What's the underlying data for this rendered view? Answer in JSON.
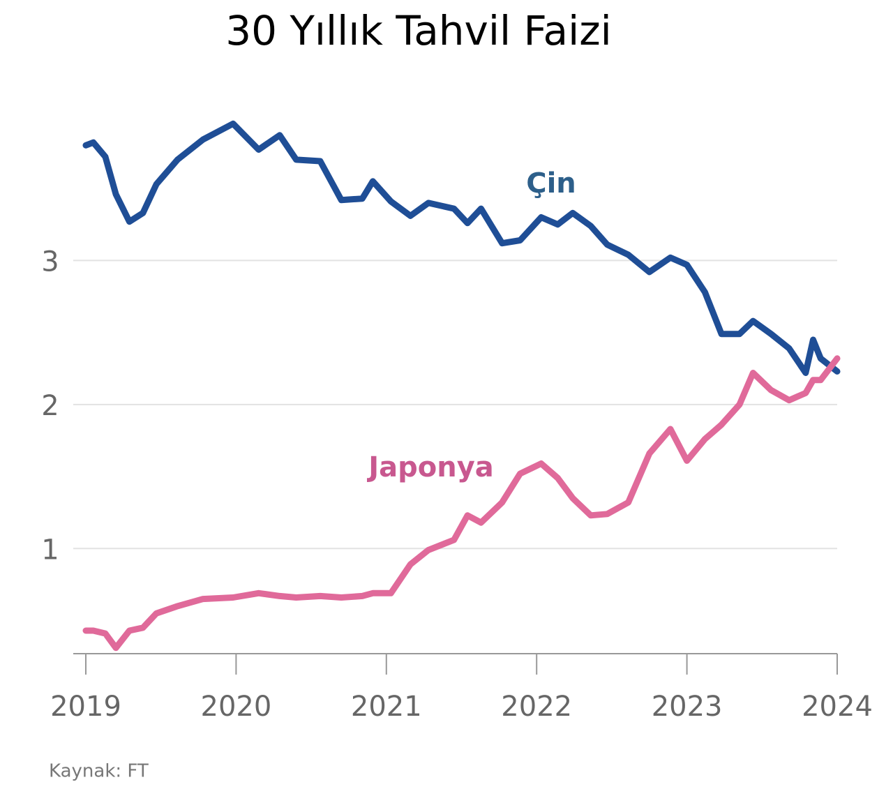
{
  "chart_data": {
    "type": "line",
    "title": "30 Yıllık Tahvil Faizi",
    "source": "Kaynak: FT",
    "x": [
      2019.0,
      2019.05,
      2019.13,
      2019.2,
      2019.29,
      2019.38,
      2019.47,
      2019.61,
      2019.78,
      2019.98,
      2020.15,
      2020.29,
      2020.4,
      2020.56,
      2020.7,
      2020.84,
      2020.91,
      2021.03,
      2021.16,
      2021.28,
      2021.45,
      2021.54,
      2021.63,
      2021.77,
      2021.89,
      2022.03,
      2022.14,
      2022.24,
      2022.36,
      2022.47,
      2022.61,
      2022.75,
      2022.89,
      2023.0,
      2023.12,
      2023.23,
      2023.35,
      2023.44,
      2023.56,
      2023.68,
      2023.79,
      2023.84,
      2023.89,
      2024.0
    ],
    "series": [
      {
        "name": "Çin",
        "color": "#1f4e96",
        "label_color": "#2d5f8a",
        "values": [
          3.8,
          3.82,
          3.72,
          3.46,
          3.27,
          3.33,
          3.53,
          3.7,
          3.84,
          3.95,
          3.77,
          3.87,
          3.7,
          3.69,
          3.42,
          3.43,
          3.55,
          3.41,
          3.31,
          3.4,
          3.36,
          3.26,
          3.36,
          3.12,
          3.14,
          3.3,
          3.25,
          3.33,
          3.24,
          3.11,
          3.04,
          2.92,
          3.02,
          2.97,
          2.78,
          2.49,
          2.49,
          2.58,
          2.49,
          2.39,
          2.22,
          2.45,
          2.32,
          2.23
        ]
      },
      {
        "name": "Japonya",
        "color": "#e06a9a",
        "label_color": "#c8588f",
        "values": [
          0.43,
          0.43,
          0.41,
          0.31,
          0.43,
          0.45,
          0.55,
          0.6,
          0.65,
          0.66,
          0.69,
          0.67,
          0.66,
          0.67,
          0.66,
          0.67,
          0.69,
          0.69,
          0.89,
          0.99,
          1.06,
          1.23,
          1.18,
          1.32,
          1.52,
          1.59,
          1.49,
          1.35,
          1.23,
          1.24,
          1.32,
          1.66,
          1.83,
          1.61,
          1.76,
          1.86,
          2.0,
          2.22,
          2.1,
          2.03,
          2.08,
          2.17,
          2.17,
          2.32
        ]
      }
    ],
    "xlim": [
      2019,
      2024
    ],
    "xticks": [
      2019,
      2020,
      2021,
      2022,
      2023,
      2024
    ],
    "ylim": [
      0.27,
      4.0
    ],
    "yticks": [
      1,
      2,
      3
    ],
    "grid": true
  }
}
